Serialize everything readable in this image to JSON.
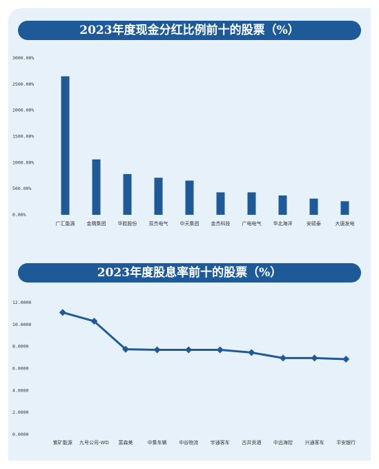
{
  "colors": {
    "panel_bg": "#e6f1f9",
    "title_bar": "#1f5a98",
    "series": "#1f5a98"
  },
  "chart_data": [
    {
      "type": "bar",
      "title": "2023年度现金分红比例前十的股票（%）",
      "categories": [
        "广汇能源",
        "金隅集团",
        "华胜股份",
        "双杰电气",
        "中天集团",
        "金杰科技",
        "广电电气",
        "华北海洋",
        "安硕泰",
        "大唐发电"
      ],
      "values": [
        2650,
        1060,
        780,
        710,
        655,
        430,
        430,
        370,
        310,
        260
      ],
      "ylim": [
        0,
        3000
      ],
      "yticks": [
        "0.00%",
        "500.00%",
        "1000.00%",
        "1500.00%",
        "2000.00%",
        "2500.00%",
        "3000.00%"
      ],
      "tick_values": [
        0,
        500,
        1000,
        1500,
        2000,
        2500,
        3000
      ],
      "xlabel": "",
      "ylabel": "",
      "grid": false
    },
    {
      "type": "line",
      "title": "2023年度股息率前十的股票（%）",
      "categories": [
        "紫矿能源",
        "九号公司-WD",
        "富森美",
        "中集车辆",
        "中谷物流",
        "宇通客车",
        "古井贡酒",
        "中远海控",
        "兴通客车",
        "平安银行"
      ],
      "values": [
        11.1,
        10.3,
        7.75,
        7.7,
        7.7,
        7.7,
        7.45,
        6.95,
        6.95,
        6.85
      ],
      "ylim": [
        0,
        12
      ],
      "yticks": [
        "0.0000",
        "2.0000",
        "4.0000",
        "6.0000",
        "8.0000",
        "10.0000",
        "12.0000"
      ],
      "tick_values": [
        0,
        2,
        4,
        6,
        8,
        10,
        12
      ],
      "xlabel": "",
      "ylabel": "",
      "grid": false
    }
  ]
}
